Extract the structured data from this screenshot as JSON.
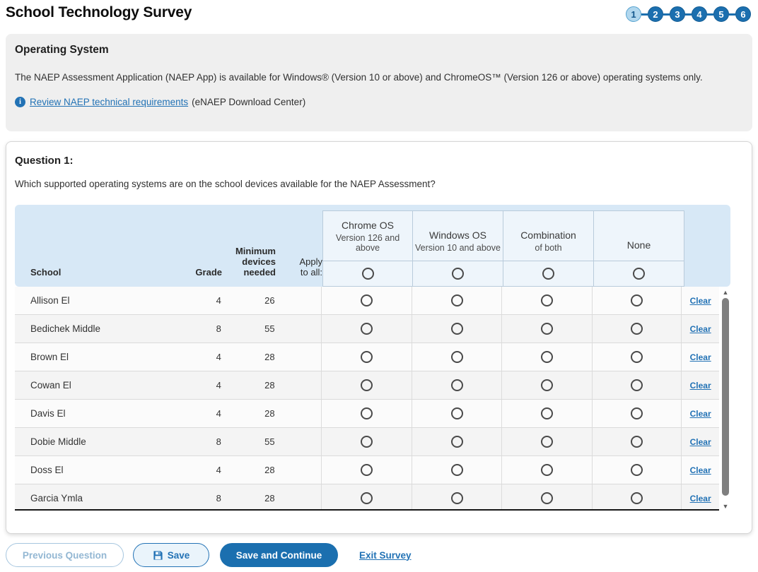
{
  "page": {
    "title": "School Technology Survey"
  },
  "stepper": {
    "steps": [
      "1",
      "2",
      "3",
      "4",
      "5",
      "6"
    ],
    "active_step": "1"
  },
  "info_panel": {
    "heading": "Operating System",
    "body": "The NAEP Assessment Application (NAEP App) is available for Windows® (Version 10 or above) and ChromeOS™ (Version 126 or above) operating systems only.",
    "link_text": "Review NAEP technical requirements",
    "link_suffix": "(eNAEP Download Center)"
  },
  "question": {
    "label": "Question 1:",
    "text": "Which supported operating systems are on the school devices available for the NAEP Assessment?"
  },
  "table": {
    "columns": {
      "school": "School",
      "grade": "Grade",
      "devices": "Minimum devices needed",
      "apply": "Apply to all:"
    },
    "options": [
      {
        "title": "Chrome OS",
        "subtitle": "Version 126 and above"
      },
      {
        "title": "Windows OS",
        "subtitle": "Version 10 and above"
      },
      {
        "title": "Combination",
        "subtitle": "of both"
      },
      {
        "title": "None",
        "subtitle": ""
      }
    ],
    "clear_label": "Clear",
    "rows": [
      {
        "school": "Allison El",
        "grade": "4",
        "devices": "26"
      },
      {
        "school": "Bedichek Middle",
        "grade": "8",
        "devices": "55"
      },
      {
        "school": "Brown El",
        "grade": "4",
        "devices": "28"
      },
      {
        "school": "Cowan El",
        "grade": "4",
        "devices": "28"
      },
      {
        "school": "Davis El",
        "grade": "4",
        "devices": "28"
      },
      {
        "school": "Dobie Middle",
        "grade": "8",
        "devices": "55"
      },
      {
        "school": "Doss El",
        "grade": "4",
        "devices": "28"
      },
      {
        "school": "Garcia Ymla",
        "grade": "8",
        "devices": "28"
      }
    ]
  },
  "footer": {
    "previous_label": "Previous Question",
    "save_label": "Save",
    "save_continue_label": "Save and Continue",
    "exit_label": "Exit Survey"
  },
  "colors": {
    "primary_blue": "#1B6FAF",
    "link_blue": "#2272B5",
    "header_band": "#D7E8F6",
    "option_box": "#EEF5FB",
    "panel_gray": "#EFEFEF",
    "step_active_fill": "#B1D7EE"
  }
}
